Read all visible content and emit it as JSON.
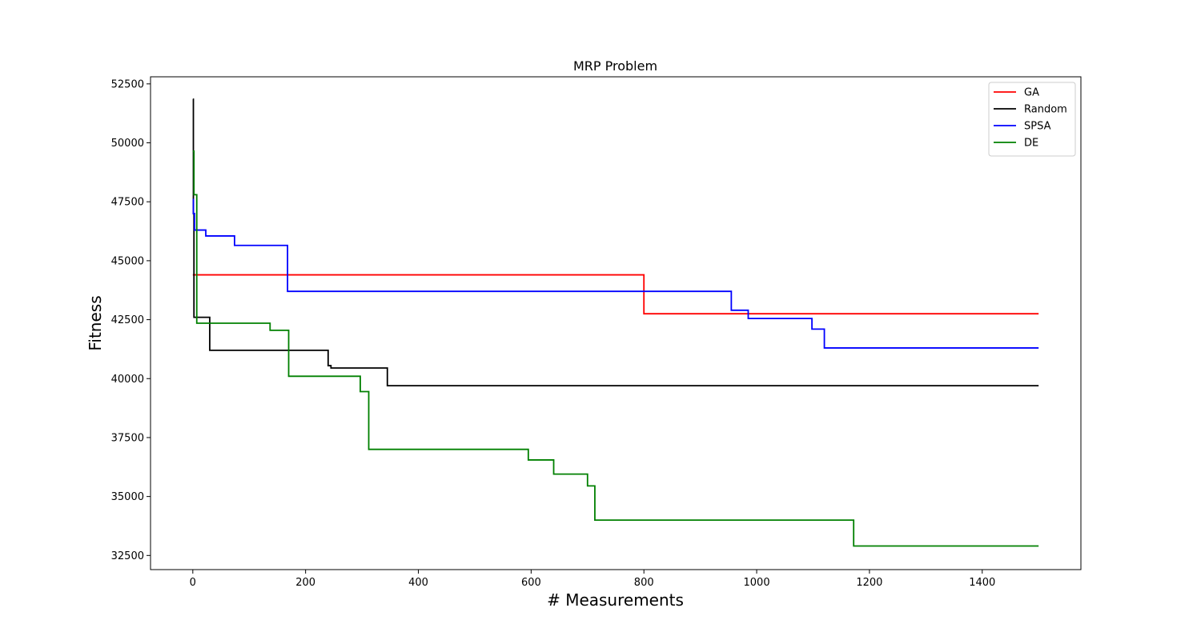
{
  "chart_data": {
    "type": "line",
    "title": "MRP Problem",
    "xlabel": "# Measurements",
    "ylabel": "Fitness",
    "xlim": [
      -75,
      1575
    ],
    "ylim": [
      31900,
      52800
    ],
    "xticks": [
      0,
      200,
      400,
      600,
      800,
      1000,
      1200,
      1400
    ],
    "yticks": [
      32500,
      35000,
      37500,
      40000,
      42500,
      45000,
      47500,
      50000,
      52500
    ],
    "legend_position": "top-right",
    "grid": false,
    "series": [
      {
        "name": "GA",
        "color": "#ff0000",
        "points": [
          [
            0,
            44400
          ],
          [
            800,
            44400
          ],
          [
            800,
            42750
          ],
          [
            1500,
            42750
          ]
        ]
      },
      {
        "name": "Random",
        "color": "#000000",
        "points": [
          [
            0,
            51850
          ],
          [
            1,
            51850
          ],
          [
            1,
            47000
          ],
          [
            2,
            47000
          ],
          [
            2,
            42600
          ],
          [
            30,
            42600
          ],
          [
            30,
            41200
          ],
          [
            240,
            41200
          ],
          [
            240,
            40550
          ],
          [
            245,
            40550
          ],
          [
            245,
            40450
          ],
          [
            345,
            40450
          ],
          [
            345,
            39700
          ],
          [
            1500,
            39700
          ]
        ]
      },
      {
        "name": "SPSA",
        "color": "#0000ff",
        "points": [
          [
            0,
            47600
          ],
          [
            1,
            47600
          ],
          [
            1,
            47000
          ],
          [
            3,
            47000
          ],
          [
            3,
            46300
          ],
          [
            23,
            46300
          ],
          [
            23,
            46050
          ],
          [
            74,
            46050
          ],
          [
            74,
            45650
          ],
          [
            168,
            45650
          ],
          [
            168,
            43700
          ],
          [
            955,
            43700
          ],
          [
            955,
            42900
          ],
          [
            985,
            42900
          ],
          [
            985,
            42550
          ],
          [
            1098,
            42550
          ],
          [
            1098,
            42100
          ],
          [
            1120,
            42100
          ],
          [
            1120,
            41300
          ],
          [
            1500,
            41300
          ]
        ]
      },
      {
        "name": "DE",
        "color": "#008000",
        "points": [
          [
            0,
            49650
          ],
          [
            2,
            49650
          ],
          [
            2,
            47800
          ],
          [
            7,
            47800
          ],
          [
            7,
            42350
          ],
          [
            137,
            42350
          ],
          [
            137,
            42050
          ],
          [
            170,
            42050
          ],
          [
            170,
            40100
          ],
          [
            297,
            40100
          ],
          [
            297,
            39450
          ],
          [
            312,
            39450
          ],
          [
            312,
            37000
          ],
          [
            595,
            37000
          ],
          [
            595,
            36550
          ],
          [
            640,
            36550
          ],
          [
            640,
            35950
          ],
          [
            700,
            35950
          ],
          [
            700,
            35450
          ],
          [
            713,
            35450
          ],
          [
            713,
            34000
          ],
          [
            1172,
            34000
          ],
          [
            1172,
            32900
          ],
          [
            1500,
            32900
          ]
        ]
      }
    ]
  }
}
